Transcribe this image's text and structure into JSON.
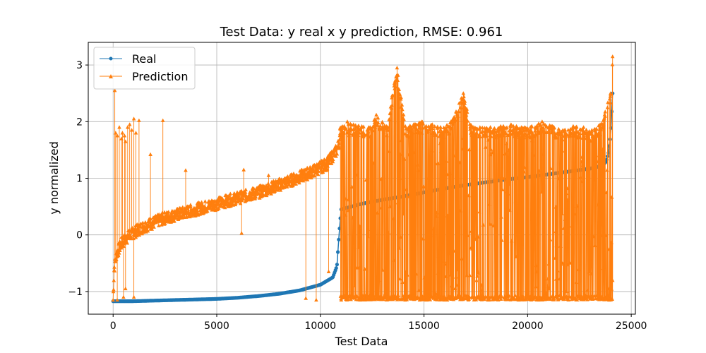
{
  "chart_data": {
    "type": "line",
    "title": "Test Data: y real x y prediction, RMSE: 0.961",
    "xlabel": "Test Data",
    "ylabel": "y normalized",
    "xlim": [
      -1200,
      25200
    ],
    "ylim": [
      -1.4,
      3.4
    ],
    "xticks": [
      0,
      5000,
      10000,
      15000,
      20000,
      25000
    ],
    "xtick_labels": [
      "0",
      "5000",
      "10000",
      "15000",
      "20000",
      "25000"
    ],
    "yticks": [
      -1,
      0,
      1,
      2,
      3
    ],
    "ytick_labels": [
      "−1",
      "0",
      "1",
      "2",
      "3"
    ],
    "grid": true,
    "legend_position": "upper-left",
    "series": [
      {
        "name": "Real",
        "color": "#1f77b4",
        "marker": "circle",
        "points": [
          [
            0,
            -1.17
          ],
          [
            1000,
            -1.17
          ],
          [
            2000,
            -1.16
          ],
          [
            3000,
            -1.15
          ],
          [
            4000,
            -1.14
          ],
          [
            5000,
            -1.13
          ],
          [
            6000,
            -1.11
          ],
          [
            7000,
            -1.08
          ],
          [
            8000,
            -1.04
          ],
          [
            9000,
            -0.98
          ],
          [
            10000,
            -0.88
          ],
          [
            10600,
            -0.75
          ],
          [
            10800,
            -0.55
          ],
          [
            10900,
            0.0
          ],
          [
            11000,
            0.45
          ],
          [
            12000,
            0.55
          ],
          [
            13000,
            0.62
          ],
          [
            14000,
            0.68
          ],
          [
            15000,
            0.75
          ],
          [
            16000,
            0.82
          ],
          [
            17000,
            0.88
          ],
          [
            18000,
            0.93
          ],
          [
            19000,
            0.98
          ],
          [
            20000,
            1.02
          ],
          [
            21000,
            1.07
          ],
          [
            22000,
            1.12
          ],
          [
            23000,
            1.17
          ],
          [
            23600,
            1.22
          ],
          [
            23800,
            1.3
          ],
          [
            23900,
            1.45
          ],
          [
            24000,
            1.75
          ],
          [
            24050,
            2.1
          ],
          [
            24100,
            2.5
          ]
        ]
      },
      {
        "name": "Prediction",
        "color": "#ff7f0e",
        "marker": "triangle",
        "trend": [
          [
            0,
            -1.15
          ],
          [
            50,
            -0.6
          ],
          [
            150,
            -0.35
          ],
          [
            400,
            -0.15
          ],
          [
            800,
            0.0
          ],
          [
            1500,
            0.15
          ],
          [
            2500,
            0.3
          ],
          [
            4000,
            0.45
          ],
          [
            5500,
            0.6
          ],
          [
            7000,
            0.75
          ],
          [
            8500,
            0.95
          ],
          [
            9500,
            1.1
          ],
          [
            10300,
            1.25
          ],
          [
            10800,
            1.5
          ],
          [
            10950,
            1.7
          ]
        ],
        "spikes": [
          [
            80,
            2.55
          ],
          [
            120,
            1.8
          ],
          [
            200,
            1.75
          ],
          [
            300,
            1.9
          ],
          [
            400,
            1.7
          ],
          [
            450,
            1.8
          ],
          [
            550,
            1.75
          ],
          [
            600,
            1.65
          ],
          [
            700,
            1.9
          ],
          [
            800,
            1.95
          ],
          [
            900,
            1.85
          ],
          [
            1000,
            2.05
          ],
          [
            1100,
            1.8
          ],
          [
            1250,
            2.02
          ],
          [
            1800,
            1.42
          ],
          [
            2400,
            2.02
          ],
          [
            3500,
            1.14
          ],
          [
            6300,
            1.15
          ],
          [
            7500,
            1.05
          ],
          [
            9700,
            1.05
          ]
        ],
        "dips": [
          [
            200,
            -1.15
          ],
          [
            500,
            -1.1
          ],
          [
            600,
            -0.95
          ],
          [
            1000,
            -1.1
          ],
          [
            6200,
            0.03
          ],
          [
            9300,
            -1.12
          ],
          [
            9800,
            -1.15
          ],
          [
            10400,
            -0.65
          ]
        ],
        "high_region_peaks": [
          [
            11000,
            1.9
          ],
          [
            11300,
            2.0
          ],
          [
            11600,
            1.95
          ],
          [
            12000,
            1.92
          ],
          [
            12400,
            1.9
          ],
          [
            12700,
            2.12
          ],
          [
            13200,
            1.92
          ],
          [
            13700,
            2.95
          ],
          [
            14100,
            1.92
          ],
          [
            14500,
            1.95
          ],
          [
            14900,
            2.0
          ],
          [
            15400,
            1.95
          ],
          [
            15800,
            1.9
          ],
          [
            16300,
            2.0
          ],
          [
            16900,
            2.5
          ],
          [
            17300,
            1.92
          ],
          [
            17700,
            1.9
          ],
          [
            18200,
            1.9
          ],
          [
            18700,
            1.92
          ],
          [
            19200,
            1.95
          ],
          [
            19700,
            1.9
          ],
          [
            20200,
            1.92
          ],
          [
            20700,
            2.0
          ],
          [
            21200,
            1.92
          ],
          [
            21700,
            1.85
          ],
          [
            22200,
            1.92
          ],
          [
            22700,
            1.9
          ],
          [
            23100,
            1.85
          ],
          [
            23500,
            1.95
          ],
          [
            24000,
            2.5
          ],
          [
            24100,
            3.15
          ]
        ],
        "high_region_low": -1.15,
        "high_region_range": [
          10950,
          24100
        ]
      }
    ]
  }
}
